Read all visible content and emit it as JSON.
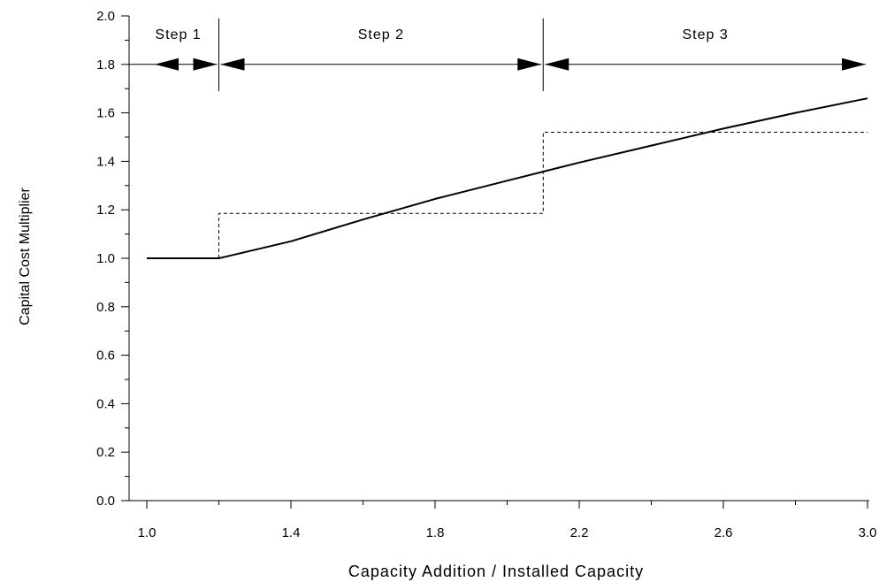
{
  "chart_data": {
    "type": "line",
    "title": "",
    "xlabel": "Capacity Addition / Installed Capacity",
    "ylabel": "Capital Cost Multiplier",
    "xlim": [
      1.0,
      3.0
    ],
    "ylim": [
      0.0,
      2.0
    ],
    "x_ticks": [
      1.0,
      1.4,
      1.8,
      2.2,
      2.6,
      3.0
    ],
    "x_tick_labels": [
      "1.0",
      "1.4",
      "1.8",
      "2.2",
      "2.6",
      "3.0"
    ],
    "y_ticks": [
      0.0,
      0.2,
      0.4,
      0.6,
      0.8,
      1.0,
      1.2,
      1.4,
      1.6,
      1.8,
      2.0
    ],
    "y_tick_labels": [
      "0.0",
      "0.2",
      "0.4",
      "0.6",
      "0.8",
      "1.0",
      "1.2",
      "1.4",
      "1.6",
      "1.8",
      "2.0"
    ],
    "grid": false,
    "legend": "none",
    "series": [
      {
        "style": "solid",
        "color": "#000000",
        "x": [
          1.0,
          1.2,
          1.4,
          1.6,
          1.8,
          2.0,
          2.2,
          2.4,
          2.6,
          2.8,
          3.0
        ],
        "y": [
          1.0,
          1.0,
          1.07,
          1.16,
          1.245,
          1.32,
          1.395,
          1.465,
          1.535,
          1.6,
          1.66
        ]
      },
      {
        "style": "dashed",
        "color": "#000000",
        "x": [
          1.2,
          1.2,
          2.1,
          2.1,
          3.0
        ],
        "y": [
          1.0,
          1.185,
          1.185,
          1.52,
          1.52
        ]
      }
    ],
    "annotations": {
      "y_level": 1.8,
      "boundaries": [
        1.2,
        2.1
      ],
      "steps": [
        {
          "label": "Step 1",
          "x_from": 0.95,
          "x_to": 1.2
        },
        {
          "label": "Step 2",
          "x_from": 1.2,
          "x_to": 2.1
        },
        {
          "label": "Step 3",
          "x_from": 2.1,
          "x_to": 3.0
        }
      ]
    }
  }
}
